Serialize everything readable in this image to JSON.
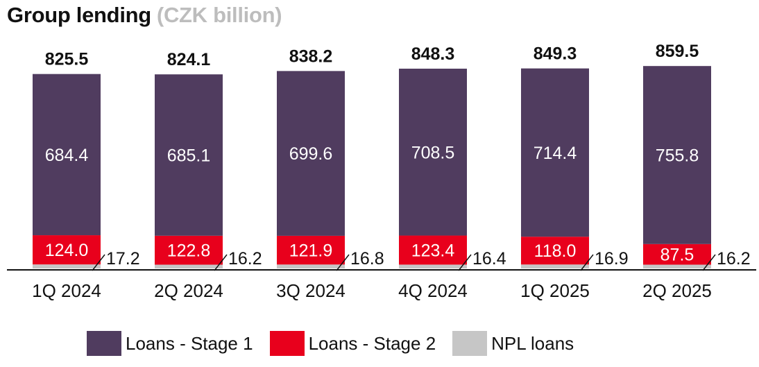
{
  "title": {
    "main": "Group lending",
    "unit": "(CZK billion)"
  },
  "colors": {
    "stage1": "#503c5f",
    "stage2": "#e8001c",
    "npl": "#c6c6c6"
  },
  "legend": [
    {
      "label": "Loans - Stage 1",
      "color": "#503c5f"
    },
    {
      "label": "Loans - Stage 2",
      "color": "#e8001c"
    },
    {
      "label": "NPL loans",
      "color": "#c6c6c6"
    }
  ],
  "chart_data": {
    "type": "bar",
    "stacked": true,
    "title": "Group lending (CZK billion)",
    "categories": [
      "1Q 2024",
      "2Q 2024",
      "3Q 2024",
      "4Q 2024",
      "1Q 2025",
      "2Q 2025"
    ],
    "series": [
      {
        "name": "Loans - Stage 1",
        "values": [
          684.4,
          685.1,
          699.6,
          708.5,
          714.4,
          755.8
        ]
      },
      {
        "name": "Loans - Stage 2",
        "values": [
          124.0,
          122.8,
          121.9,
          123.4,
          118.0,
          87.5
        ]
      },
      {
        "name": "NPL loans",
        "values": [
          17.2,
          16.2,
          16.8,
          16.4,
          16.9,
          16.2
        ]
      }
    ],
    "totals": [
      825.5,
      824.1,
      838.2,
      848.3,
      849.3,
      859.5
    ],
    "value_labels": {
      "stage1": [
        "684.4",
        "685.1",
        "699.6",
        "708.5",
        "714.4",
        "755.8"
      ],
      "stage2": [
        "124.0",
        "122.8",
        "121.9",
        "123.4",
        "118.0",
        "87.5"
      ],
      "npl": [
        "17.2",
        "16.2",
        "16.8",
        "16.4",
        "16.9",
        "16.2"
      ],
      "totals": [
        "825.5",
        "824.1",
        "838.2",
        "848.3",
        "849.3",
        "859.5"
      ]
    },
    "ylim": [
      0,
      860
    ],
    "grid": false,
    "legend_position": "bottom"
  }
}
